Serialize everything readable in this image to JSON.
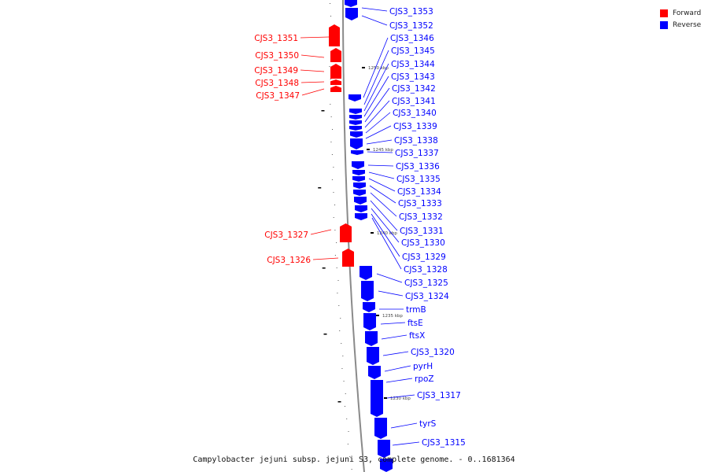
{
  "colors": {
    "forward": "#ff0000",
    "reverse": "#0000ff",
    "backbone": "#8a8a8a"
  },
  "legend": [
    {
      "label": "Forward",
      "color": "#ff0000"
    },
    {
      "label": "Reverse",
      "color": "#0000ff"
    }
  ],
  "caption": "Campylobacter jejuni subsp. jejuni S3, complete genome. - 0..1681364",
  "position_markers": [
    "1250 kbp",
    "1245 kbp",
    "1240 kbp",
    "1235 kbp",
    "1230 kbp"
  ],
  "forward_genes": [
    "CJS3_1351",
    "CJS3_1350",
    "CJS3_1349",
    "CJS3_1348",
    "CJS3_1347",
    "CJS3_1327",
    "CJS3_1326"
  ],
  "reverse_genes": [
    "CJS3_1353",
    "CJS3_1352",
    "CJS3_1346",
    "CJS3_1345",
    "CJS3_1344",
    "CJS3_1343",
    "CJS3_1342",
    "CJS3_1341",
    "CJS3_1340",
    "CJS3_1339",
    "CJS3_1338",
    "CJS3_1337",
    "CJS3_1336",
    "CJS3_1335",
    "CJS3_1334",
    "CJS3_1333",
    "CJS3_1332",
    "CJS3_1331",
    "CJS3_1330",
    "CJS3_1329",
    "CJS3_1328",
    "CJS3_1325",
    "CJS3_1324",
    "trmB",
    "ftsE",
    "ftsX",
    "CJS3_1320",
    "pyrH",
    "rpoZ",
    "CJS3_1317",
    "tyrS",
    "CJS3_1315"
  ]
}
